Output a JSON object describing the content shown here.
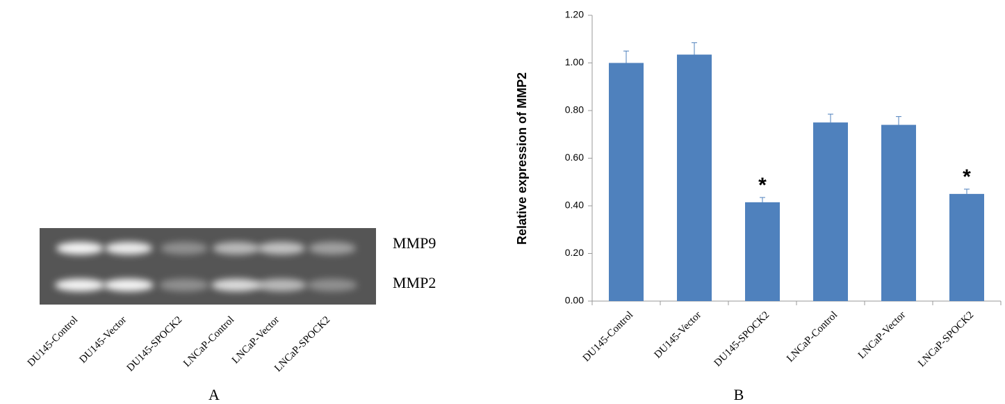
{
  "panel_a": {
    "label": "A",
    "band_labels": [
      "MMP9",
      "MMP2"
    ],
    "lanes": [
      "DU145-Control",
      "DU145-Vector",
      "DU145-SPOCK2",
      "LNCaP-Control",
      "LNCaP-Vector",
      "LNCaP-SPOCK2"
    ]
  },
  "chart_data": {
    "type": "bar",
    "panel_label": "B",
    "ylabel": "Relative expression of MMP2",
    "categories": [
      "DU145-Control",
      "DU145-Vector",
      "DU145-SPOCK2",
      "LNCaP-Control",
      "LNCaP-Vector",
      "LNCaP-SPOCK2"
    ],
    "values": [
      1.0,
      1.035,
      0.415,
      0.75,
      0.74,
      0.45
    ],
    "errors": [
      0.05,
      0.05,
      0.02,
      0.035,
      0.035,
      0.02
    ],
    "color": "#4f81bd",
    "annotations": [
      {
        "text": "*",
        "category": "DU145-SPOCK2"
      },
      {
        "text": "*",
        "category": "LNCaP-SPOCK2"
      }
    ],
    "ylim": [
      0,
      1.2
    ],
    "yticks": [
      {
        "value": 0,
        "label": "0.00"
      },
      {
        "value": 0.2,
        "label": "0.20"
      },
      {
        "value": 0.4,
        "label": "0.40"
      },
      {
        "value": 0.6,
        "label": "0.60"
      },
      {
        "value": 0.8,
        "label": "0.80"
      },
      {
        "value": 1.0,
        "label": "1.00"
      },
      {
        "value": 1.2,
        "label": "1.20"
      }
    ]
  }
}
